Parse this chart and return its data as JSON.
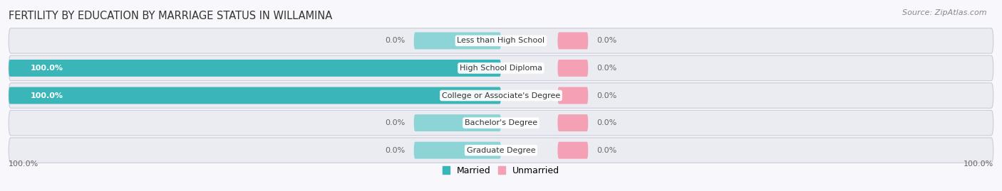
{
  "title": "FERTILITY BY EDUCATION BY MARRIAGE STATUS IN WILLAMINA",
  "source": "Source: ZipAtlas.com",
  "categories": [
    "Less than High School",
    "High School Diploma",
    "College or Associate's Degree",
    "Bachelor's Degree",
    "Graduate Degree"
  ],
  "married_values": [
    0.0,
    100.0,
    100.0,
    0.0,
    0.0
  ],
  "unmarried_values": [
    0.0,
    0.0,
    0.0,
    0.0,
    0.0
  ],
  "married_color": "#3ab5b8",
  "married_color_stub": "#8dd4d6",
  "unmarried_color": "#f4a0b5",
  "row_bg_color": "#ebebf2",
  "row_border_color": "#d8d8e2",
  "label_married_left": [
    "0.0%",
    "100.0%",
    "100.0%",
    "0.0%",
    "0.0%"
  ],
  "label_unmarried_right": [
    "0.0%",
    "0.0%",
    "0.0%",
    "0.0%",
    "0.0%"
  ],
  "x_left_label": "100.0%",
  "x_right_label": "100.0%",
  "title_fontsize": 10.5,
  "source_fontsize": 8,
  "label_fontsize": 8,
  "category_fontsize": 8,
  "legend_fontsize": 9,
  "bar_height": 0.62,
  "max_value": 100.0,
  "stub_size": 7.0
}
